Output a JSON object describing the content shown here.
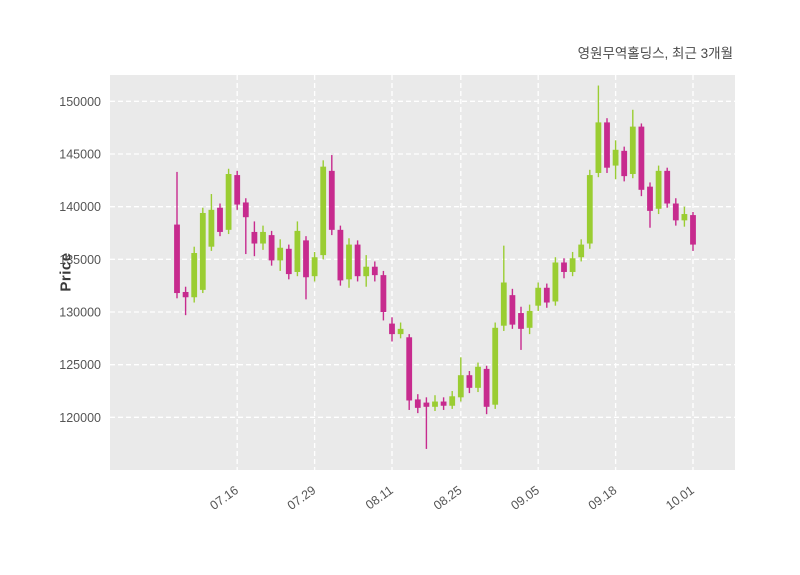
{
  "chart_data": {
    "type": "candlestick",
    "title": "영원무역홀딩스, 최근 3개월",
    "ylabel": "Price",
    "y_ticks": [
      120000,
      125000,
      130000,
      135000,
      140000,
      145000,
      150000
    ],
    "ylim": [
      115000,
      152500
    ],
    "x_tick_labels": [
      "07.16",
      "07.29",
      "08.11",
      "08.25",
      "09.05",
      "09.18",
      "10.01"
    ],
    "x_tick_indices": [
      7,
      16,
      25,
      33,
      42,
      51,
      60
    ],
    "grid": true,
    "legend": "none",
    "plot_bg": "#EAEAEA",
    "grid_color": "#FFFFFF",
    "up_color": "#9ACD32",
    "down_color": "#C72B8E",
    "candles": [
      [
        138300,
        143300,
        131300,
        131800
      ],
      [
        131900,
        132400,
        129700,
        131400
      ],
      [
        131400,
        136200,
        130900,
        135600
      ],
      [
        132100,
        139900,
        131800,
        139400
      ],
      [
        136200,
        141200,
        135800,
        139700
      ],
      [
        139900,
        140300,
        137200,
        137600
      ],
      [
        137800,
        143600,
        137400,
        143100
      ],
      [
        143000,
        143400,
        139700,
        140200
      ],
      [
        140400,
        140800,
        135500,
        139000
      ],
      [
        137600,
        138600,
        135300,
        136500
      ],
      [
        136500,
        138200,
        135900,
        137600
      ],
      [
        137300,
        137700,
        134400,
        134900
      ],
      [
        134900,
        136900,
        133900,
        136100
      ],
      [
        136000,
        136400,
        133100,
        133600
      ],
      [
        133800,
        138600,
        133400,
        137700
      ],
      [
        136800,
        137200,
        131200,
        133300
      ],
      [
        133400,
        135700,
        132900,
        135200
      ],
      [
        135400,
        144400,
        135000,
        143800
      ],
      [
        143400,
        144900,
        137300,
        137800
      ],
      [
        137800,
        138200,
        132500,
        133000
      ],
      [
        133100,
        137000,
        132300,
        136400
      ],
      [
        136400,
        136800,
        132900,
        133400
      ],
      [
        133400,
        135400,
        132400,
        134300
      ],
      [
        134300,
        134800,
        132900,
        133500
      ],
      [
        133500,
        133900,
        129200,
        130000
      ],
      [
        128900,
        129500,
        127200,
        127900
      ],
      [
        127900,
        129000,
        127500,
        128400
      ],
      [
        127600,
        127900,
        120700,
        121600
      ],
      [
        121700,
        122200,
        120400,
        120900
      ],
      [
        121400,
        121900,
        117000,
        121000
      ],
      [
        121000,
        122100,
        120600,
        121500
      ],
      [
        121500,
        121900,
        120700,
        121100
      ],
      [
        121100,
        122500,
        120800,
        122000
      ],
      [
        121900,
        125700,
        121500,
        124000
      ],
      [
        124000,
        124400,
        122300,
        122800
      ],
      [
        122800,
        125200,
        122400,
        124800
      ],
      [
        124600,
        124900,
        120300,
        121000
      ],
      [
        121200,
        129000,
        120800,
        128500
      ],
      [
        128700,
        136300,
        128200,
        132800
      ],
      [
        131600,
        132200,
        128400,
        128800
      ],
      [
        129900,
        130500,
        126400,
        128400
      ],
      [
        128500,
        130700,
        127900,
        130100
      ],
      [
        130600,
        132800,
        130100,
        132300
      ],
      [
        132300,
        132700,
        130400,
        130900
      ],
      [
        131000,
        135200,
        130600,
        134700
      ],
      [
        134700,
        135100,
        133200,
        133800
      ],
      [
        133800,
        135700,
        133400,
        135100
      ],
      [
        135200,
        136900,
        134800,
        136400
      ],
      [
        136500,
        143500,
        136000,
        143000
      ],
      [
        143200,
        151500,
        142800,
        148000
      ],
      [
        148000,
        148400,
        143200,
        143700
      ],
      [
        143900,
        146300,
        142600,
        145400
      ],
      [
        145300,
        145700,
        142400,
        142900
      ],
      [
        143100,
        149200,
        142700,
        147600
      ],
      [
        147600,
        147900,
        141000,
        141600
      ],
      [
        141900,
        142300,
        138000,
        139600
      ],
      [
        139800,
        143900,
        139300,
        143400
      ],
      [
        143400,
        143700,
        139900,
        140300
      ],
      [
        140300,
        140800,
        138200,
        138700
      ],
      [
        138700,
        140000,
        138100,
        139300
      ],
      [
        139200,
        139500,
        135800,
        136400
      ]
    ]
  }
}
